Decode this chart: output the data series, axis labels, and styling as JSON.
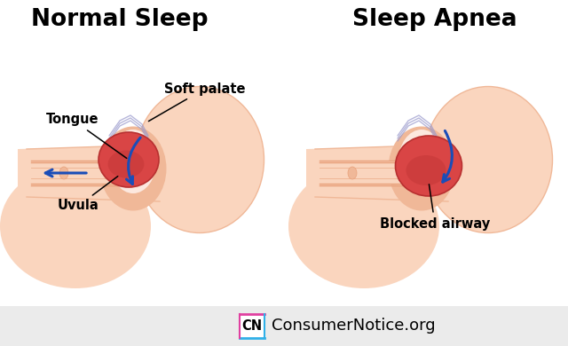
{
  "title_left": "Normal Sleep",
  "title_right": "Sleep Apnea",
  "title_fontsize": 19,
  "title_fontweight": "bold",
  "bg_color": "#ffffff",
  "footer_bg": "#ebebeb",
  "skin_light": "#fad5be",
  "skin_mid": "#f0b898",
  "skin_dark": "#e8a07a",
  "throat_inner": "#fce8df",
  "tongue_color": "#d94545",
  "tongue_dark": "#b83030",
  "tongue_highlight": "#e86060",
  "blue_arrow": "#1a4db8",
  "soft_palate_line": "#9999cc",
  "label_fontsize": 10.5,
  "footer_text": "ConsumerNotice.org",
  "footer_fontsize": 13,
  "cn_box_pink": "#e040a0",
  "cn_box_cyan": "#30b0e8"
}
